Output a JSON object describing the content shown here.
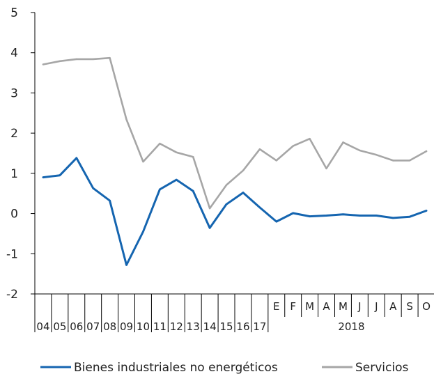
{
  "chart_data": {
    "type": "line",
    "x": [
      "04",
      "05",
      "06",
      "07",
      "08",
      "09",
      "10",
      "11",
      "12",
      "13",
      "14",
      "15",
      "16",
      "17",
      "E",
      "F",
      "M",
      "A",
      "M",
      "J",
      "J",
      "A",
      "S",
      "O"
    ],
    "group_labels": [
      {
        "label": "2018",
        "from": 14,
        "to": 23
      }
    ],
    "ylim": [
      -2,
      5
    ],
    "yticks": [
      "-2",
      "-1",
      "0",
      "1",
      "2",
      "3",
      "4",
      "5"
    ],
    "series": [
      {
        "name": "Bienes industriales no energéticos",
        "color": "#1565b0",
        "values": [
          0.9,
          0.95,
          1.38,
          0.63,
          0.32,
          -1.28,
          -0.45,
          0.6,
          0.84,
          0.56,
          -0.36,
          0.23,
          0.52,
          0.15,
          -0.2,
          0.01,
          -0.07,
          -0.05,
          -0.02,
          -0.05,
          -0.05,
          -0.11,
          -0.08,
          0.07
        ]
      },
      {
        "name": "Servicios",
        "color": "#a6a6a6",
        "values": [
          3.71,
          3.79,
          3.84,
          3.84,
          3.87,
          2.34,
          1.29,
          1.74,
          1.52,
          1.41,
          0.13,
          0.71,
          1.07,
          1.6,
          1.32,
          1.68,
          1.86,
          1.12,
          1.77,
          1.57,
          1.46,
          1.32,
          1.32,
          1.55
        ]
      }
    ],
    "legend_position": "bottom",
    "grid": false
  }
}
